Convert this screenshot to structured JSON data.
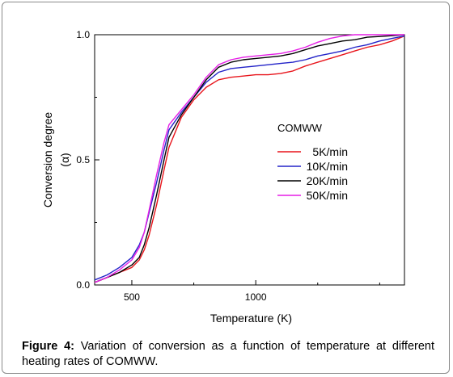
{
  "chart_data": {
    "type": "line",
    "xlabel": "Temperature (K)",
    "ylabel_line1": "Conversion degree",
    "ylabel_line2": "(α)",
    "xlim": [
      350,
      1600
    ],
    "ylim": [
      0.0,
      1.0
    ],
    "x_ticks": [
      500,
      1000
    ],
    "x_tick_labels": [
      "500",
      "1000"
    ],
    "y_ticks": [
      0.0,
      0.5,
      1.0
    ],
    "y_tick_labels": [
      "0.0",
      "0.5",
      "1.0"
    ],
    "legend_title": "COMWW",
    "legend_position": "center-right",
    "series": [
      {
        "name": "5K/min",
        "color": "#e8141b",
        "x": [
          350,
          400,
          450,
          500,
          530,
          550,
          570,
          600,
          630,
          650,
          700,
          750,
          800,
          850,
          900,
          950,
          1000,
          1050,
          1100,
          1150,
          1200,
          1250,
          1300,
          1350,
          1400,
          1450,
          1500,
          1550,
          1600
        ],
        "y": [
          0.01,
          0.03,
          0.05,
          0.07,
          0.1,
          0.14,
          0.2,
          0.32,
          0.46,
          0.55,
          0.67,
          0.74,
          0.79,
          0.82,
          0.83,
          0.835,
          0.84,
          0.84,
          0.845,
          0.855,
          0.875,
          0.89,
          0.905,
          0.92,
          0.935,
          0.95,
          0.96,
          0.975,
          0.995
        ]
      },
      {
        "name": "10K/min",
        "color": "#2323c8",
        "x": [
          350,
          400,
          450,
          500,
          530,
          550,
          570,
          600,
          630,
          650,
          700,
          750,
          800,
          850,
          900,
          950,
          1000,
          1050,
          1100,
          1150,
          1200,
          1250,
          1300,
          1350,
          1400,
          1450,
          1500,
          1550,
          1600
        ],
        "y": [
          0.02,
          0.04,
          0.07,
          0.11,
          0.16,
          0.21,
          0.29,
          0.41,
          0.54,
          0.62,
          0.69,
          0.75,
          0.81,
          0.85,
          0.865,
          0.87,
          0.875,
          0.88,
          0.885,
          0.89,
          0.9,
          0.915,
          0.925,
          0.935,
          0.95,
          0.96,
          0.975,
          0.985,
          0.995
        ]
      },
      {
        "name": "20K/min",
        "color": "#000000",
        "x": [
          350,
          400,
          450,
          500,
          530,
          550,
          570,
          600,
          630,
          650,
          700,
          750,
          800,
          850,
          900,
          950,
          1000,
          1050,
          1100,
          1150,
          1200,
          1250,
          1300,
          1350,
          1400,
          1450,
          1500,
          1550,
          1600
        ],
        "y": [
          0.01,
          0.03,
          0.05,
          0.08,
          0.11,
          0.16,
          0.23,
          0.36,
          0.5,
          0.59,
          0.68,
          0.75,
          0.82,
          0.87,
          0.89,
          0.9,
          0.905,
          0.91,
          0.915,
          0.925,
          0.94,
          0.955,
          0.965,
          0.975,
          0.98,
          0.99,
          0.993,
          0.996,
          1.0
        ]
      },
      {
        "name": "50K/min",
        "color": "#e61ee6",
        "x": [
          350,
          400,
          450,
          500,
          530,
          550,
          570,
          600,
          630,
          650,
          700,
          750,
          800,
          850,
          900,
          950,
          1000,
          1050,
          1100,
          1150,
          1200,
          1250,
          1300,
          1350,
          1400,
          1450,
          1500,
          1550,
          1600
        ],
        "y": [
          0.01,
          0.03,
          0.06,
          0.1,
          0.15,
          0.21,
          0.3,
          0.44,
          0.57,
          0.64,
          0.7,
          0.76,
          0.83,
          0.88,
          0.9,
          0.91,
          0.915,
          0.92,
          0.925,
          0.935,
          0.95,
          0.97,
          0.985,
          0.995,
          1.0,
          1.0,
          1.0,
          1.0,
          1.0
        ]
      }
    ]
  },
  "caption": {
    "label": "Figure 4:",
    "text": " Variation of conversion as a function of temperature at different heating rates of COMWW."
  }
}
